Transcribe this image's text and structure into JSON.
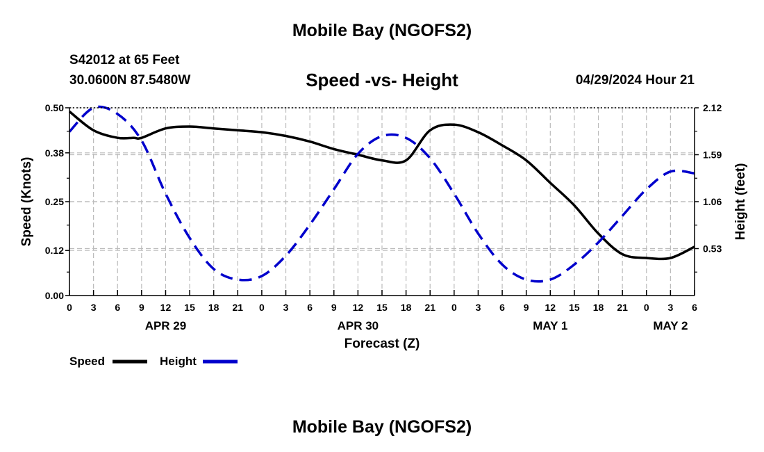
{
  "header": {
    "title": "Mobile Bay (NGOFS2)",
    "station": "S42012 at 65 Feet",
    "coords": "30.0600N  87.5480W",
    "chart_title": "Speed -vs- Height",
    "datetime": "04/29/2024 Hour 21"
  },
  "footer": {
    "title": "Mobile Bay (NGOFS2)"
  },
  "chart_data": {
    "type": "line",
    "title": "Speed -vs- Height",
    "xlabel": "Forecast (Z)",
    "ylabel": "Speed (Knots)",
    "y2label": "Height (feet)",
    "x_range_hours": [
      0,
      78
    ],
    "ylim": [
      0,
      0.5
    ],
    "y2lim": [
      0,
      2.12
    ],
    "y_ticks": [
      "0.00",
      "0.12",
      "0.25",
      "0.38",
      "0.50"
    ],
    "y2_ticks": [
      "0.53",
      "1.06",
      "1.59",
      "2.12"
    ],
    "x_tick_labels": [
      "0",
      "3",
      "6",
      "9",
      "12",
      "15",
      "18",
      "21",
      "0",
      "3",
      "6",
      "9",
      "12",
      "15",
      "18",
      "21",
      "0",
      "3",
      "6",
      "9",
      "12",
      "15",
      "18",
      "21",
      "0",
      "3",
      "6"
    ],
    "date_labels": [
      {
        "label": "APR 29",
        "hour": 12
      },
      {
        "label": "APR 30",
        "hour": 36
      },
      {
        "label": "MAY 1",
        "hour": 60
      },
      {
        "label": "MAY 2",
        "hour": 75
      }
    ],
    "series": [
      {
        "name": "Speed",
        "color": "#000000",
        "style": "solid",
        "axis": "left",
        "x": [
          0,
          3,
          6,
          8,
          9,
          12,
          15,
          18,
          21,
          24,
          27,
          30,
          33,
          36,
          39,
          42,
          45,
          48,
          51,
          54,
          57,
          60,
          63,
          66,
          69,
          72,
          75,
          78
        ],
        "values": [
          0.49,
          0.44,
          0.42,
          0.42,
          0.42,
          0.445,
          0.45,
          0.445,
          0.44,
          0.435,
          0.425,
          0.41,
          0.39,
          0.375,
          0.36,
          0.36,
          0.44,
          0.455,
          0.435,
          0.4,
          0.36,
          0.3,
          0.24,
          0.165,
          0.11,
          0.1,
          0.1,
          0.13
        ]
      },
      {
        "name": "Height",
        "color": "#0000cc",
        "style": "dashed",
        "axis": "right",
        "x": [
          0,
          3,
          6,
          9,
          12,
          15,
          18,
          21,
          24,
          27,
          30,
          33,
          36,
          39,
          42,
          45,
          48,
          51,
          54,
          57,
          60,
          63,
          66,
          69,
          72,
          75,
          78
        ],
        "values": [
          1.85,
          2.12,
          2.05,
          1.75,
          1.15,
          0.65,
          0.3,
          0.18,
          0.22,
          0.45,
          0.8,
          1.2,
          1.6,
          1.8,
          1.78,
          1.55,
          1.15,
          0.7,
          0.35,
          0.18,
          0.18,
          0.35,
          0.6,
          0.9,
          1.2,
          1.4,
          1.38
        ]
      }
    ],
    "legend": [
      "Speed",
      "Height"
    ]
  }
}
